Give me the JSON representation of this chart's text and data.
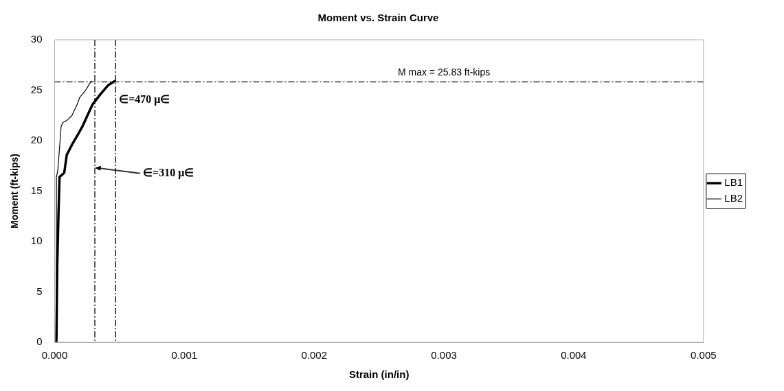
{
  "chart_data": {
    "type": "line",
    "title": "Moment vs. Strain Curve",
    "xlabel": "Strain (in/in)",
    "ylabel": "Moment (ft-kips)",
    "xlim": [
      0,
      0.005
    ],
    "xticks": [
      {
        "value": 0,
        "label": "0.000"
      },
      {
        "value": 0.001,
        "label": "0.001"
      },
      {
        "value": 0.002,
        "label": "0.002"
      },
      {
        "value": 0.003,
        "label": "0.003"
      },
      {
        "value": 0.004,
        "label": "0.004"
      },
      {
        "value": 0.005,
        "label": "0.005"
      }
    ],
    "ylim": [
      0,
      30
    ],
    "yticks": [
      0,
      5,
      10,
      15,
      20,
      25,
      30
    ],
    "grid": false,
    "legend": "right",
    "marker": "none",
    "line_style": "solid",
    "series": [
      {
        "name": "LB1",
        "color": "#000000",
        "x": [
          1.4e-05,
          2e-05,
          3e-05,
          3.8e-05,
          7.4e-05,
          9.4e-05,
          0.000134,
          0.000184,
          0.000214,
          0.000253,
          0.000293,
          0.000353,
          0.000413,
          0.000463
        ],
        "values": [
          0,
          7.5,
          12.8,
          16.4,
          16.8,
          18.6,
          19.6,
          20.7,
          21.4,
          22.5,
          23.6,
          24.6,
          25.5,
          25.9
        ]
      },
      {
        "name": "LB2",
        "color": "#000000",
        "x": [
          1.4e-05,
          1.4e-05,
          2.4e-05,
          3.8e-05,
          5e-05,
          6.4e-05,
          9.4e-05,
          0.000134,
          0.000174,
          0.000194,
          0.000234,
          0.000263,
          0.000283
        ],
        "values": [
          0,
          16.4,
          17.0,
          19.3,
          21.4,
          21.8,
          22.0,
          22.5,
          23.6,
          24.3,
          24.9,
          25.5,
          25.9
        ]
      }
    ],
    "ref_lines": [
      {
        "axis": "y",
        "value": 25.83,
        "label": "M max = 25.83 ft-kips",
        "line_style": "dashed"
      },
      {
        "axis": "x",
        "value": 0.00047,
        "label": "∈=470 μ∈",
        "line_style": "dashed"
      },
      {
        "axis": "x",
        "value": 0.00031,
        "line_style": "dashed"
      }
    ],
    "annotations": [
      {
        "text": "∈=310 μ∈",
        "x": 0.00031,
        "y": 17.3
      }
    ]
  }
}
